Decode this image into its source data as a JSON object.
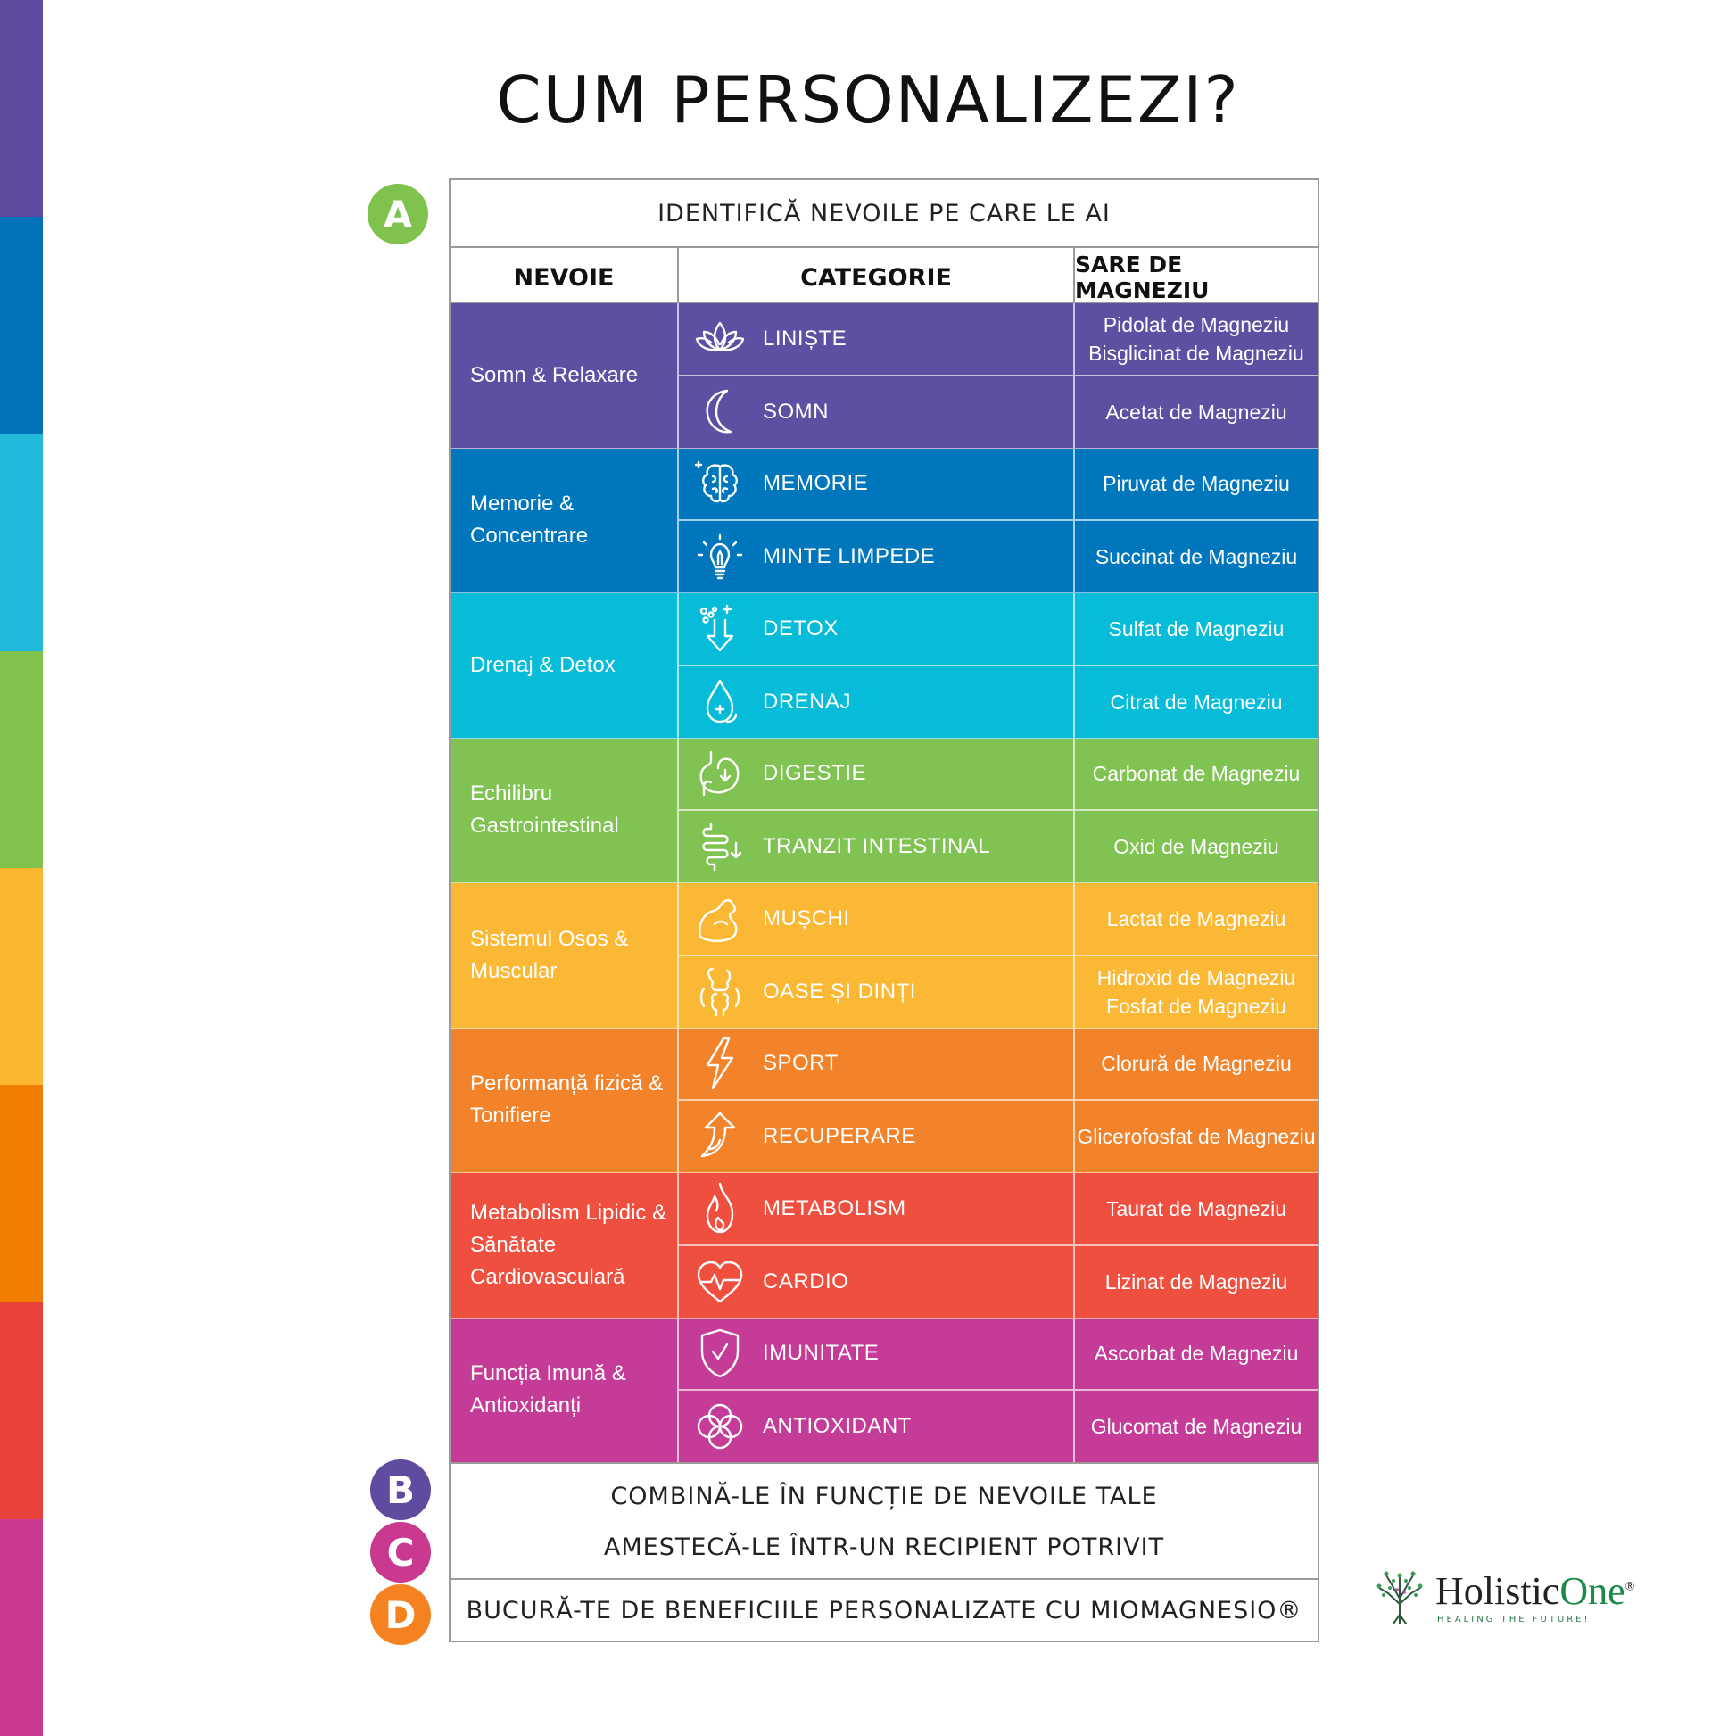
{
  "title": "CUM PERSONALIZEZI?",
  "stripe_colors": [
    "#5f4b9f",
    "#0072b9",
    "#22b8d9",
    "#7fc24d",
    "#fbb72f",
    "#f07c00",
    "#e8403b",
    "#c8398f"
  ],
  "steps": {
    "a": {
      "badge": "A",
      "text": "IDENTIFICĂ NEVOILE PE CARE LE AI",
      "color": "#7fc24d"
    },
    "b": {
      "badge": "B",
      "text": "COMBINĂ-LE ÎN FUNCȚIE DE NEVOILE TALE",
      "color": "#5f4b9f"
    },
    "c": {
      "badge": "C",
      "text": "AMESTECĂ-LE ÎNTR-UN RECIPIENT POTRIVIT",
      "color": "#c8398f"
    },
    "d": {
      "badge": "D",
      "text": "BUCURĂ-TE DE BENEFICIILE PERSONALIZATE CU MIOMAGNESIO®",
      "color": "#f58220"
    }
  },
  "table": {
    "headers": {
      "need": "NEVOIE",
      "category": "CATEGORIE",
      "salt": "SARE DE MAGNEZIU"
    },
    "groups": [
      {
        "need": "Somn & Relaxare",
        "color": "#5f4fa3",
        "rows": [
          {
            "icon": "lotus-icon",
            "category": "LINIȘTE",
            "salts": [
              "Pidolat de Magneziu",
              "Bisglicinat de Magneziu"
            ]
          },
          {
            "icon": "moon-icon",
            "category": "SOMN",
            "salts": [
              "Acetat de Magneziu"
            ]
          }
        ]
      },
      {
        "need": "Memorie & Concentrare",
        "color": "#0077bd",
        "rows": [
          {
            "icon": "brain-icon",
            "category": "MEMORIE",
            "salts": [
              "Piruvat de Magneziu"
            ]
          },
          {
            "icon": "lightbulb-icon",
            "category": "MINTE LIMPEDE",
            "salts": [
              "Succinat de Magneziu"
            ]
          }
        ]
      },
      {
        "need": "Drenaj & Detox",
        "color": "#06bcd9",
        "rows": [
          {
            "icon": "detox-arrow-icon",
            "category": "DETOX",
            "salts": [
              "Sulfat de Magneziu"
            ]
          },
          {
            "icon": "water-drop-icon",
            "category": "DRENAJ",
            "salts": [
              "Citrat de Magneziu"
            ]
          }
        ]
      },
      {
        "need": "Echilibru Gastrointestinal",
        "color": "#80c352",
        "rows": [
          {
            "icon": "stomach-icon",
            "category": "DIGESTIE",
            "salts": [
              "Carbonat de Magneziu"
            ]
          },
          {
            "icon": "intestine-icon",
            "category": "TRANZIT INTESTINAL",
            "salts": [
              "Oxid de Magneziu"
            ]
          }
        ]
      },
      {
        "need": "Sistemul Osos & Muscular",
        "color": "#fbb834",
        "rows": [
          {
            "icon": "muscle-icon",
            "category": "MUȘCHI",
            "salts": [
              "Lactat de Magneziu"
            ]
          },
          {
            "icon": "bone-joint-icon",
            "category": "OASE ȘI DINȚI",
            "salts": [
              "Hidroxid de Magneziu",
              "Fosfat de Magneziu"
            ]
          }
        ]
      },
      {
        "need": "Performanță fizică & Tonifiere",
        "color": "#f3832a",
        "rows": [
          {
            "icon": "lightning-icon",
            "category": "SPORT",
            "salts": [
              "Clorură de Magneziu"
            ]
          },
          {
            "icon": "recovery-arrow-icon",
            "category": "RECUPERARE",
            "salts": [
              "Glicerofosfat de Magneziu"
            ]
          }
        ]
      },
      {
        "need": "Metabolism Lipidic & Sănătate Cardiovasculară",
        "color": "#ef4f3f",
        "rows": [
          {
            "icon": "flame-icon",
            "category": "METABOLISM",
            "salts": [
              "Taurat de Magneziu"
            ]
          },
          {
            "icon": "heart-pulse-icon",
            "category": "CARDIO",
            "salts": [
              "Lizinat de Magneziu"
            ]
          }
        ]
      },
      {
        "need": "Funcția Imună & Antioxidanți",
        "color": "#c53c98",
        "rows": [
          {
            "icon": "shield-check-icon",
            "category": "IMUNITATE",
            "salts": [
              "Ascorbat de Magneziu"
            ]
          },
          {
            "icon": "antioxidant-icon",
            "category": "ANTIOXIDANT",
            "salts": [
              "Glucomat de Magneziu"
            ]
          }
        ]
      }
    ]
  },
  "logo": {
    "name_part1": "Holistic",
    "name_part2": "One",
    "mark": "®",
    "tagline": "HEALING THE FUTURE!"
  }
}
